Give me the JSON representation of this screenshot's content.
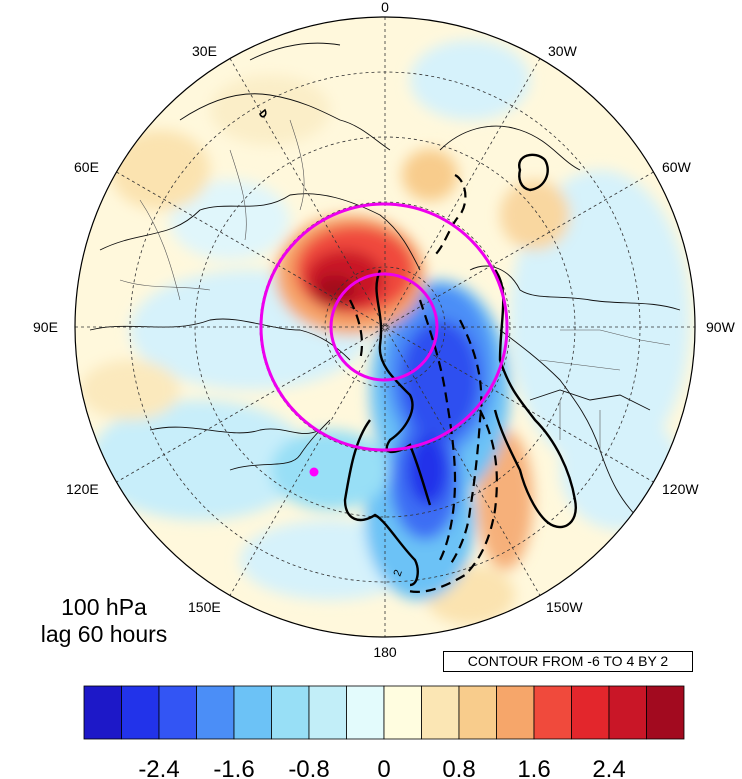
{
  "map": {
    "longitude_labels": [
      "0",
      "30W",
      "60W",
      "90W",
      "120W",
      "150W",
      "180",
      "150E",
      "120E",
      "90E",
      "60E",
      "30E"
    ],
    "caption_line1": "100 hPa",
    "caption_line2": "lag 60 hours",
    "contour_note": "CONTOUR FROM -6 TO 4 BY 2",
    "contour_label": "2",
    "marker_color": "#ff00ff",
    "circle_color": "#ee00ee"
  },
  "colorbar": {
    "colors": [
      "#1d18c8",
      "#2233ea",
      "#3355f4",
      "#4b8ef7",
      "#6cc2f6",
      "#98dff6",
      "#c2eef8",
      "#e3fbfc",
      "#fffde0",
      "#fbe6b4",
      "#f8cc8c",
      "#f6a66a",
      "#f04a3c",
      "#e3262c",
      "#c91627",
      "#a20a1f"
    ],
    "tick_labels": [
      "-2.4",
      "-1.6",
      "-0.8",
      "0",
      "0.8",
      "1.6",
      "2.4"
    ]
  }
}
